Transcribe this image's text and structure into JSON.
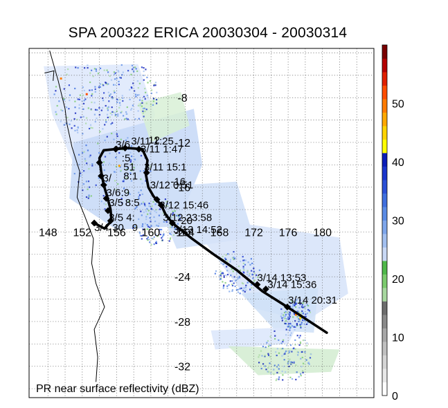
{
  "title": "SPA 200322 ERICA 20030304 - 20030314",
  "caption": "PR near surface reflectivity (dBZ)",
  "map": {
    "lon_labels": [
      "148",
      "152",
      "156",
      "160",
      "164",
      "168",
      "172",
      "176",
      "180"
    ],
    "lat_labels": [
      "-8",
      "-12",
      "-16",
      "-20",
      "-24",
      "-28",
      "-32"
    ]
  },
  "track": {
    "points": [
      {
        "lon": 153.4,
        "lat": -19.2
      },
      {
        "lon": 154.6,
        "lat": -19.7
      },
      {
        "lon": 155.4,
        "lat": -19.0
      },
      {
        "lon": 155.3,
        "lat": -18.0
      },
      {
        "lon": 154.9,
        "lat": -16.8
      },
      {
        "lon": 154.5,
        "lat": -15.8
      },
      {
        "lon": 154.2,
        "lat": -14.6
      },
      {
        "lon": 154.0,
        "lat": -13.4
      },
      {
        "lon": 154.5,
        "lat": -12.7
      },
      {
        "lon": 155.8,
        "lat": -12.6
      },
      {
        "lon": 157.3,
        "lat": -12.5
      },
      {
        "lon": 159.0,
        "lat": -12.6
      },
      {
        "lon": 159.6,
        "lat": -13.6
      },
      {
        "lon": 159.4,
        "lat": -14.8
      },
      {
        "lon": 159.7,
        "lat": -16.0
      },
      {
        "lon": 160.3,
        "lat": -16.8
      },
      {
        "lon": 161.2,
        "lat": -17.6
      },
      {
        "lon": 161.7,
        "lat": -18.4
      },
      {
        "lon": 162.5,
        "lat": -19.2
      },
      {
        "lon": 164.8,
        "lat": -20.6
      },
      {
        "lon": 167.5,
        "lat": -22.1
      },
      {
        "lon": 170.0,
        "lat": -23.4
      },
      {
        "lon": 173.0,
        "lat": -25.3
      },
      {
        "lon": 175.5,
        "lat": -26.5
      },
      {
        "lon": 177.5,
        "lat": -27.5
      },
      {
        "lon": 180.5,
        "lat": -29.0
      }
    ],
    "markers": [
      {
        "lon": 153.4,
        "lat": -19.2
      },
      {
        "lon": 155.3,
        "lat": -19.0
      },
      {
        "lon": 155.0,
        "lat": -18.1
      },
      {
        "lon": 154.8,
        "lat": -17.0
      },
      {
        "lon": 154.5,
        "lat": -15.8
      },
      {
        "lon": 154.2,
        "lat": -15.0
      },
      {
        "lon": 154.0,
        "lat": -13.8
      },
      {
        "lon": 155.9,
        "lat": -12.6
      },
      {
        "lon": 157.0,
        "lat": -12.5
      },
      {
        "lon": 158.6,
        "lat": -12.6
      },
      {
        "lon": 159.5,
        "lat": -14.7
      },
      {
        "lon": 160.7,
        "lat": -17.1
      },
      {
        "lon": 161.2,
        "lat": -17.6
      },
      {
        "lon": 162.5,
        "lat": -19.2
      },
      {
        "lon": 172.4,
        "lat": -24.7
      },
      {
        "lon": 173.4,
        "lat": -25.1
      },
      {
        "lon": 175.9,
        "lat": -26.7
      }
    ],
    "labels": [
      {
        "text": "3/6 ",
        "lon": 155.9,
        "lat": -12.5
      },
      {
        "text": "3/11 1:25",
        "lon": 157.7,
        "lat": -12.2
      },
      {
        "text": "12",
        "lon": 159.7,
        "lat": -12.1
      },
      {
        "text": "3/11 1:47",
        "lon": 158.8,
        "lat": -12.9
      },
      {
        "text": ":5",
        "lon": 156.6,
        "lat": -13.7
      },
      {
        "text": "51",
        "lon": 156.8,
        "lat": -14.5
      },
      {
        "text": "3/11 15:1",
        "lon": 159.2,
        "lat": -14.5
      },
      {
        "text": "3/",
        "lon": 154.4,
        "lat": -15.5
      },
      {
        "text": "8:1",
        "lon": 156.8,
        "lat": -15.3
      },
      {
        "text": "-16",
        "lon": 162.3,
        "lat": -15.8
      },
      {
        "text": "3/12 0:51",
        "lon": 159.9,
        "lat": -16.1
      },
      {
        "text": "3/6 ",
        "lon": 154.8,
        "lat": -16.8
      },
      {
        "text": ":9",
        "lon": 156.5,
        "lat": -16.8
      },
      {
        "text": "3/5 ",
        "lon": 155.1,
        "lat": -17.7
      },
      {
        "text": "8:5",
        "lon": 157.0,
        "lat": -17.7
      },
      {
        "text": "3/12 15:46",
        "lon": 161.0,
        "lat": -17.9
      },
      {
        "text": "3/5 4:",
        "lon": 155.1,
        "lat": -19.0
      },
      {
        "text": "3/12 23:58",
        "lon": 161.4,
        "lat": -19.0
      },
      {
        "text": "20",
        "lon": 163.5,
        "lat": -19.3
      },
      {
        "text": "3/13 14:52",
        "lon": 162.6,
        "lat": -20.1
      },
      {
        "text": "3/4",
        "lon": 153.4,
        "lat": -19.9
      },
      {
        "text": "30",
        "lon": 155.5,
        "lat": -19.9
      },
      {
        "text": "9",
        "lon": 157.8,
        "lat": -19.9
      },
      {
        "text": "3/14 13:53",
        "lon": 172.4,
        "lat": -24.4
      },
      {
        "text": "3/14 15:36",
        "lon": 173.6,
        "lat": -25.0
      },
      {
        "text": "3/14 20:31",
        "lon": 176.0,
        "lat": -26.4
      }
    ]
  },
  "colorbar": {
    "ticks": [
      "0",
      "10",
      "20",
      "30",
      "40",
      "50"
    ],
    "colors": [
      "#ffffff",
      "#e8e8e8",
      "#d5d5d5",
      "#c0c0c0",
      "#a8a8a8",
      "#8a8a8a",
      "#6d6d6d",
      "#a8d8a0",
      "#7ccb6e",
      "#4fb84a",
      "#c9d9f5",
      "#a3c0f0",
      "#7ea6eb",
      "#5a8be5",
      "#3f6fde",
      "#2b50d6",
      "#1a35cc",
      "#0b1db8",
      "#ffff00",
      "#ffd400",
      "#ffa800",
      "#ff7b00",
      "#ff4d00",
      "#e02000",
      "#b40000",
      "#7a0000"
    ]
  },
  "coastline": {
    "points": [
      {
        "lon": 148.2,
        "lat": -3.8
      },
      {
        "lon": 149.2,
        "lat": -6.5
      },
      {
        "lon": 150.0,
        "lat": -9.0
      },
      {
        "lon": 150.2,
        "lat": -10.3
      },
      {
        "lon": 150.8,
        "lat": -12.4
      },
      {
        "lon": 151.7,
        "lat": -14.6
      },
      {
        "lon": 151.4,
        "lat": -16.9
      },
      {
        "lon": 152.3,
        "lat": -18.6
      },
      {
        "lon": 153.3,
        "lat": -20.6
      },
      {
        "lon": 153.1,
        "lat": -22.8
      },
      {
        "lon": 153.6,
        "lat": -24.6
      },
      {
        "lon": 154.6,
        "lat": -26.7
      },
      {
        "lon": 153.4,
        "lat": -28.7
      },
      {
        "lon": 153.8,
        "lat": -31.2
      },
      {
        "lon": 153.6,
        "lat": -33.4
      }
    ],
    "islet": [
      {
        "lon": 147.6,
        "lat": -5.8
      },
      {
        "lon": 148.7,
        "lat": -5.6
      },
      {
        "lon": 148.6,
        "lat": -6.5
      }
    ]
  }
}
